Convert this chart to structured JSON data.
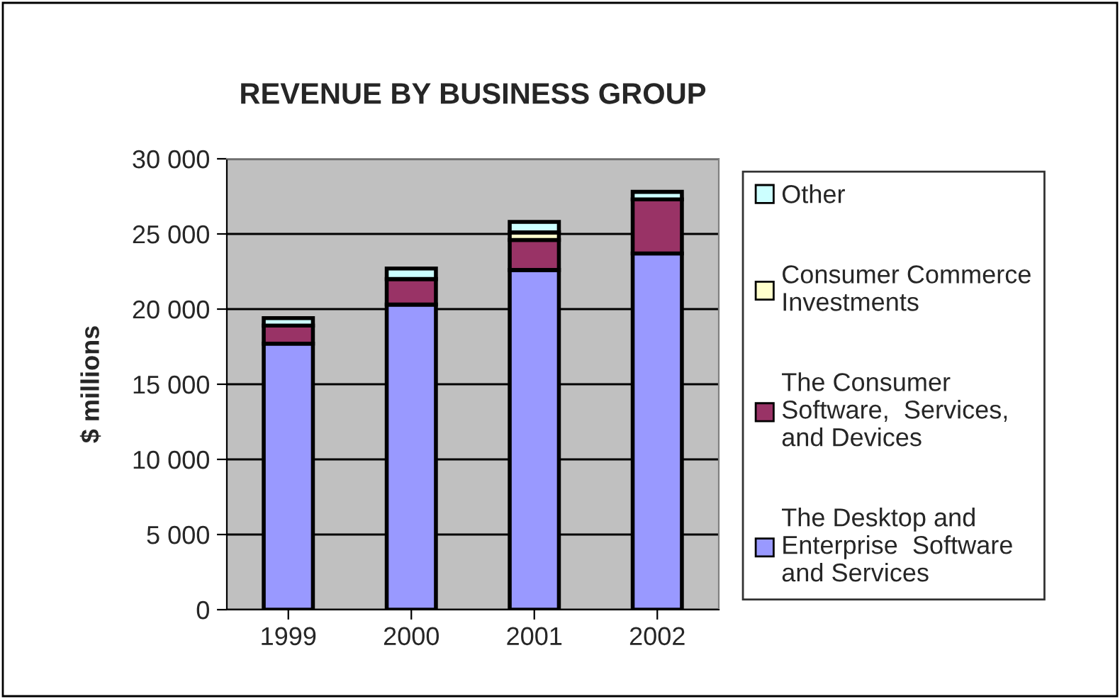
{
  "chart_data": {
    "type": "bar",
    "title": "REVENUE BY BUSINESS GROUP",
    "ylabel": "$ millions",
    "categories": [
      "1999",
      "2000",
      "2001",
      "2002"
    ],
    "stacked": true,
    "series": [
      {
        "name": "The Desktop and\nEnterprise  Software\nand Services",
        "color": "#9999ff",
        "values": [
          17700,
          20300,
          22600,
          23700
        ]
      },
      {
        "name": "The Consumer\nSoftware,  Services,\nand Devices",
        "color": "#993366",
        "values": [
          1200,
          1700,
          2000,
          3600
        ]
      },
      {
        "name": "Consumer Commerce\nInvestments",
        "color": "#ffffcc",
        "values": [
          null,
          null,
          500,
          null
        ]
      },
      {
        "name": "Other",
        "color": "#ccffff",
        "values": [
          500,
          700,
          700,
          500
        ]
      }
    ],
    "ylim": [
      0,
      30000
    ],
    "yticks": [
      0,
      {
        "value": 5000,
        "label": "5 000"
      },
      {
        "value": 10000,
        "label": "10 000"
      },
      {
        "value": 15000,
        "label": "15 000"
      },
      {
        "value": 20000,
        "label": "20 000"
      },
      {
        "value": 25000,
        "label": "25 000"
      },
      {
        "value": 30000,
        "label": "30 000"
      }
    ],
    "grid": "y",
    "legend": "right"
  }
}
